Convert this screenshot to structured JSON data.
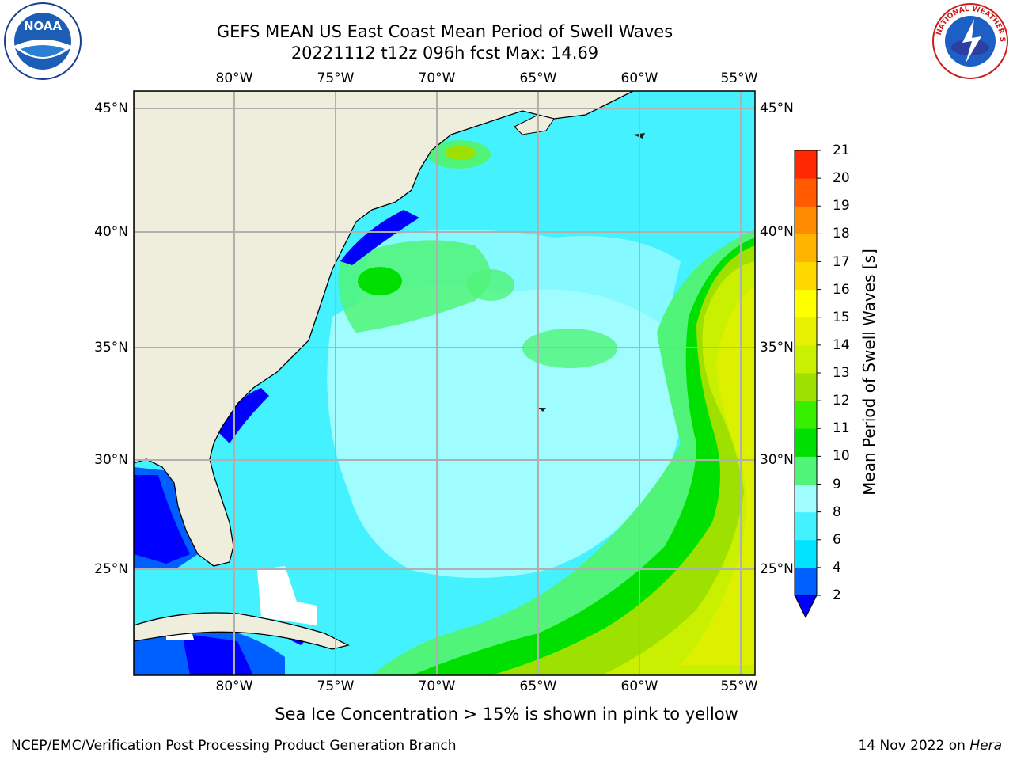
{
  "title": {
    "line1": "GEFS MEAN US East Coast Mean Period of Swell Waves",
    "line2": "20221112 t12z 096h fcst   Max: 14.69"
  },
  "map": {
    "projection": "lat-lon",
    "extent": {
      "lon_min": -85,
      "lon_max": -54.2,
      "lat_min": 20.5,
      "lat_max": 45.8
    },
    "lon_ticks": [
      "80°W",
      "75°W",
      "70°W",
      "65°W",
      "60°W",
      "55°W"
    ],
    "lat_ticks": [
      "45°N",
      "40°N",
      "35°N",
      "30°N",
      "25°N"
    ],
    "grid": true,
    "land_color": "#efeddc",
    "coastline_color": "#000000"
  },
  "colorbar": {
    "label": "Mean Period of Swell Waves [s]",
    "levels": [
      "2",
      "4",
      "6",
      "8",
      "9",
      "10",
      "11",
      "12",
      "13",
      "14",
      "15",
      "16",
      "17",
      "18",
      "19",
      "20",
      "21"
    ],
    "colors": [
      "#0060ff",
      "#00e4ff",
      "#44f2ff",
      "#9ffcff",
      "#50f478",
      "#00e000",
      "#36ee00",
      "#9ee000",
      "#c8f000",
      "#e6f000",
      "#ffff00",
      "#ffd800",
      "#ffb400",
      "#ff8c00",
      "#ff5a00",
      "#ff2800",
      "#ff0000"
    ],
    "extend_color": "#0000ff",
    "extend": "min"
  },
  "note": "Sea Ice Concentration > 15% is shown in pink to yellow",
  "footer": {
    "left": "NCEP/EMC/Verification Post Processing Product Generation Branch",
    "right_prefix": "14 Nov 2022 on ",
    "right_host": "Hera"
  },
  "logos": {
    "noaa_text": "NOAA",
    "nws_text": "NATIONAL WEATHER SERVICE"
  }
}
